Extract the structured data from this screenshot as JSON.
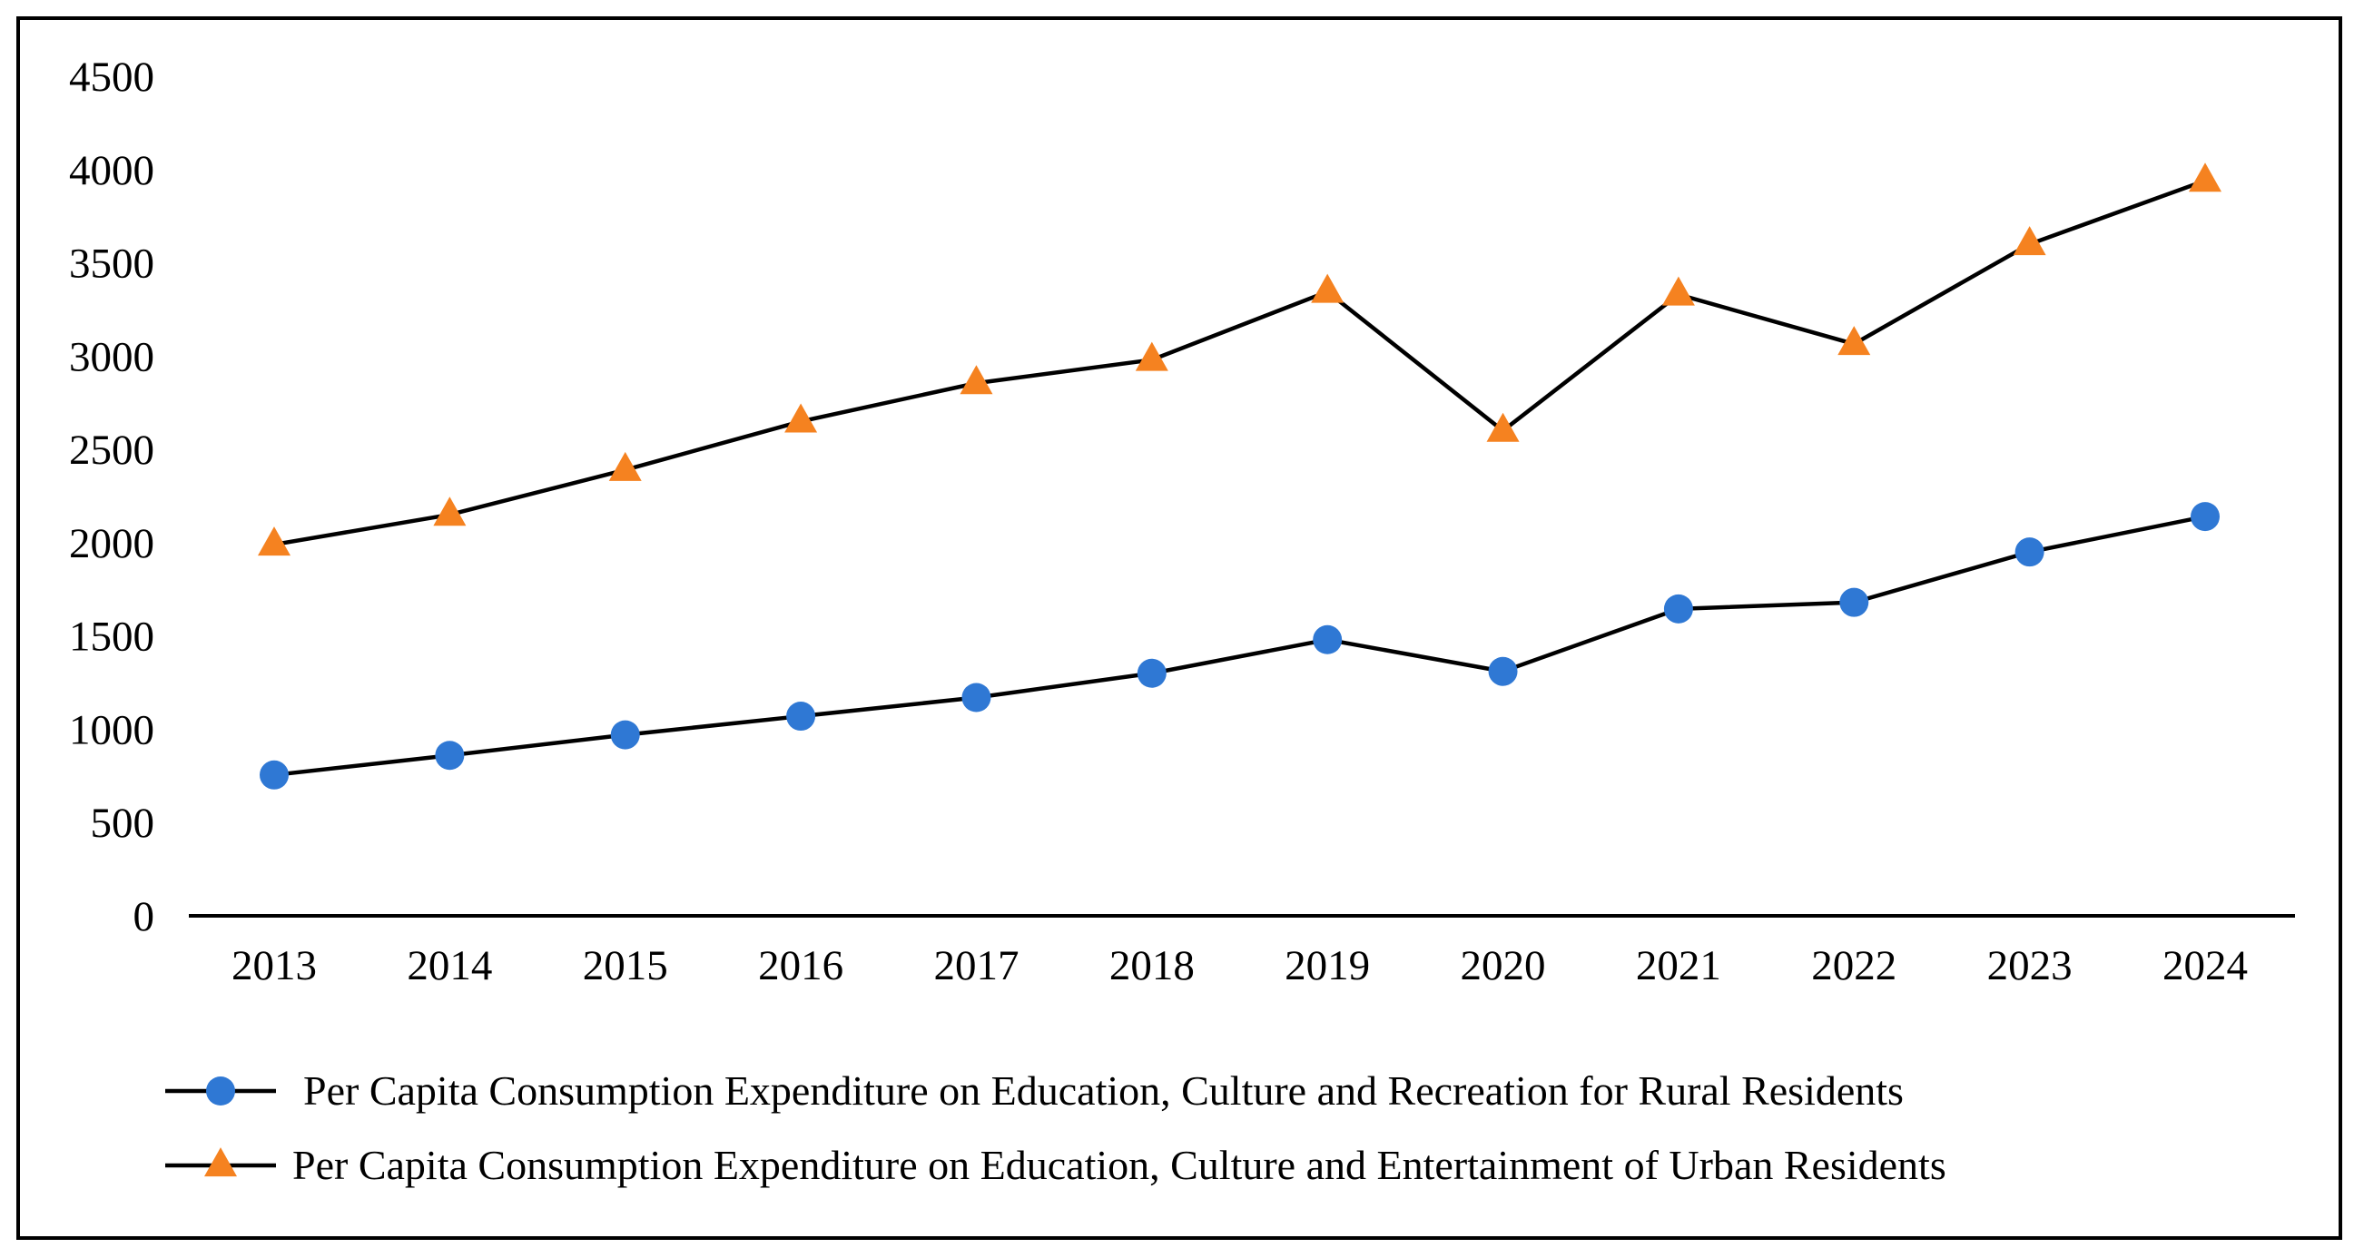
{
  "chart_data": {
    "type": "line",
    "title": "",
    "xlabel": "",
    "ylabel": "",
    "x": [
      "2013",
      "2014",
      "2015",
      "2016",
      "2017",
      "2018",
      "2019",
      "2020",
      "2021",
      "2022",
      "2023",
      "2024"
    ],
    "ylim": [
      0,
      4500
    ],
    "yticks": [
      0,
      500,
      1000,
      1500,
      2000,
      2500,
      3000,
      3500,
      4000,
      4500
    ],
    "grid": false,
    "legend_position": "bottom",
    "series": [
      {
        "name": "Per Capita Consumption Expenditure on Education, Culture and Recreation for Rural Residents",
        "marker": "circle",
        "marker_color": "#2f78d4",
        "line_color": "#000000",
        "values": [
          755,
          860,
          970,
          1070,
          1170,
          1300,
          1480,
          1310,
          1645,
          1680,
          1950,
          2140
        ]
      },
      {
        "name": "Per Capita Consumption Expenditure on Education, Culture and Entertainment of Urban Residents",
        "marker": "triangle",
        "marker_color": "#f58220",
        "line_color": "#000000",
        "values": [
          1990,
          2150,
          2390,
          2650,
          2855,
          2980,
          3345,
          2600,
          3330,
          3065,
          3600,
          3940
        ]
      }
    ]
  }
}
